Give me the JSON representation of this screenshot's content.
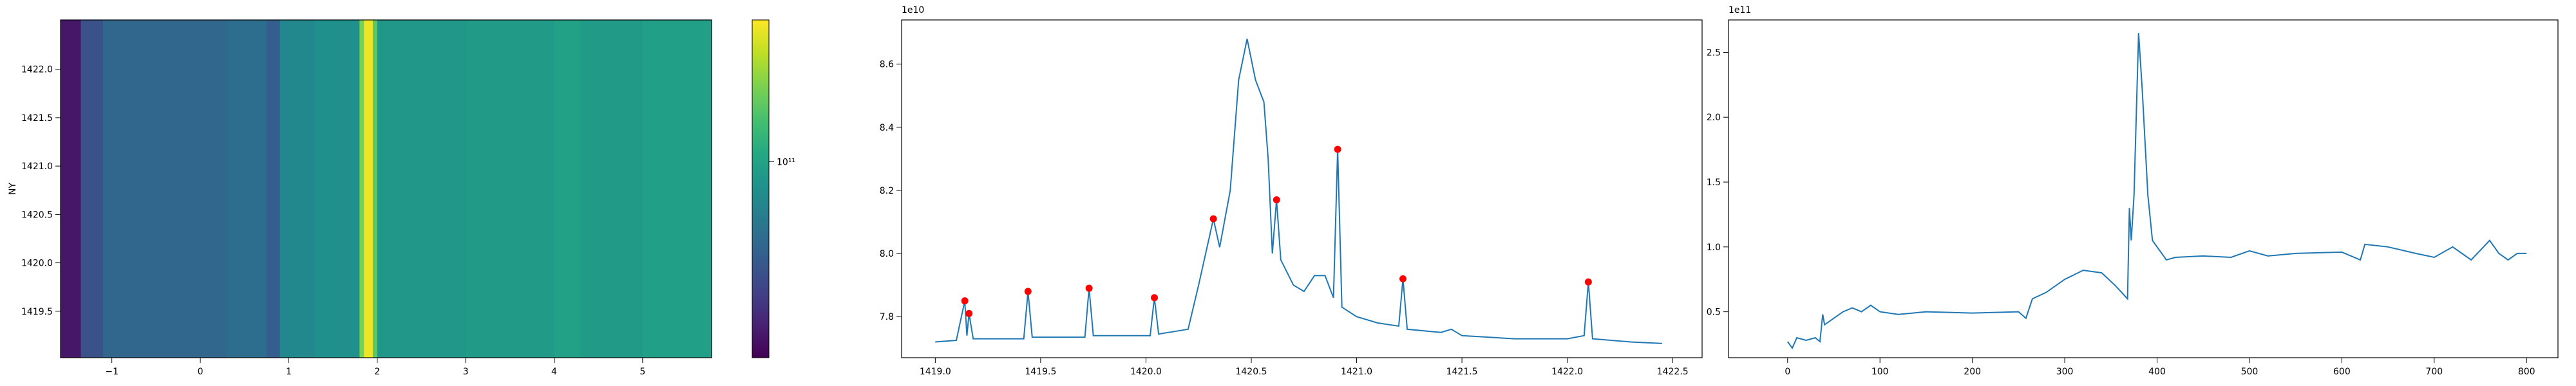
{
  "chart_data": [
    {
      "type": "heatmap",
      "ylabel": "NY",
      "colormap": "viridis",
      "log_color": true,
      "clim": [
        26000000000,
        265000000000
      ],
      "colorbar_ticks": [
        {
          "value": 100000000000,
          "label": "10¹¹"
        }
      ],
      "x_edges": [
        -1.58,
        -1.35,
        -1.1,
        0.3,
        0.75,
        0.9,
        1.3,
        1.8,
        1.85,
        1.95,
        2.0,
        3.0,
        4.0,
        4.3,
        5.0,
        5.78
      ],
      "values": [
        30000000000,
        46500000000,
        56000000000,
        60000000000,
        52000000000,
        77000000000,
        83000000000,
        166000000000,
        250000000000,
        148000000000,
        89000000000,
        93000000000,
        99000000000,
        93000000000,
        97000000000
      ],
      "xlim": [
        -1.58,
        5.78
      ],
      "ylim": [
        1419.02,
        1422.51
      ],
      "xticks": [
        {
          "value": -1,
          "label": "−1"
        },
        0,
        1,
        2,
        3,
        4,
        5
      ],
      "yticks": [
        {
          "value": 1419.5,
          "label": "1419.5"
        },
        {
          "value": 1420,
          "label": "1420.0"
        },
        {
          "value": 1420.5,
          "label": "1420.5"
        },
        {
          "value": 1421,
          "label": "1421.0"
        },
        {
          "value": 1421.5,
          "label": "1421.5"
        },
        {
          "value": 1422,
          "label": "1422.0"
        }
      ]
    },
    {
      "type": "line",
      "offset_text": "1e10",
      "xlim": [
        1418.84,
        1422.64
      ],
      "ylim": [
        7.67,
        8.74
      ],
      "xticks": [
        {
          "value": 1419,
          "label": "1419.0"
        },
        1419.5,
        {
          "value": 1420,
          "label": "1420.0"
        },
        1420.5,
        {
          "value": 1421,
          "label": "1421.0"
        },
        1421.5,
        {
          "value": 1422,
          "label": "1422.0"
        },
        1422.5
      ],
      "yticks": [
        7.8,
        {
          "value": 8,
          "label": "8.0"
        },
        8.2,
        8.4,
        8.6
      ],
      "series": [
        {
          "color": "#1f77b4",
          "line": true,
          "x": [
            1419.0,
            1419.1,
            1419.14,
            1419.15,
            1419.16,
            1419.18,
            1419.42,
            1419.44,
            1419.46,
            1419.71,
            1419.73,
            1419.75,
            1420.02,
            1420.04,
            1420.06,
            1420.2,
            1420.25,
            1420.3,
            1420.32,
            1420.35,
            1420.4,
            1420.44,
            1420.48,
            1420.52,
            1420.56,
            1420.58,
            1420.6,
            1420.62,
            1420.64,
            1420.7,
            1420.75,
            1420.8,
            1420.85,
            1420.89,
            1420.91,
            1420.93,
            1421.0,
            1421.1,
            1421.2,
            1421.22,
            1421.24,
            1421.4,
            1421.45,
            1421.5,
            1421.75,
            1422.0,
            1422.08,
            1422.1,
            1422.12,
            1422.3,
            1422.45
          ],
          "values": [
            7.72,
            7.725,
            7.85,
            7.74,
            7.81,
            7.73,
            7.73,
            7.88,
            7.735,
            7.735,
            7.89,
            7.74,
            7.74,
            7.86,
            7.745,
            7.76,
            7.9,
            8.05,
            8.11,
            8.02,
            8.2,
            8.55,
            8.68,
            8.55,
            8.48,
            8.3,
            8.0,
            8.17,
            7.98,
            7.9,
            7.88,
            7.93,
            7.93,
            7.86,
            8.33,
            7.83,
            7.8,
            7.78,
            7.77,
            7.92,
            7.76,
            7.75,
            7.76,
            7.74,
            7.73,
            7.73,
            7.74,
            7.91,
            7.73,
            7.72,
            7.715
          ]
        },
        {
          "color": "red",
          "line": false,
          "marker": "o",
          "x": [
            1419.14,
            1419.16,
            1419.44,
            1419.73,
            1420.04,
            1420.32,
            1420.62,
            1420.91,
            1421.22,
            1422.1
          ],
          "values": [
            7.85,
            7.81,
            7.88,
            7.89,
            7.86,
            8.11,
            8.17,
            8.33,
            7.92,
            7.91
          ]
        }
      ]
    },
    {
      "type": "line",
      "offset_text": "1e11",
      "xlim": [
        -64,
        834
      ],
      "ylim": [
        0.146,
        2.75
      ],
      "xticks": [
        0,
        100,
        200,
        300,
        400,
        500,
        600,
        700,
        800
      ],
      "yticks": [
        0.5,
        {
          "value": 1,
          "label": "1.0"
        },
        1.5,
        {
          "value": 2,
          "label": "2.0"
        },
        2.5
      ],
      "series": [
        {
          "color": "#1f77b4",
          "line": true,
          "x": [
            0,
            5,
            10,
            20,
            30,
            35,
            38,
            40,
            50,
            60,
            70,
            80,
            90,
            100,
            120,
            150,
            200,
            250,
            258,
            265,
            280,
            300,
            320,
            340,
            355,
            368,
            370,
            372,
            375,
            380,
            384,
            390,
            395,
            400,
            410,
            420,
            450,
            480,
            500,
            520,
            550,
            600,
            620,
            625,
            650,
            680,
            700,
            720,
            740,
            760,
            770,
            780,
            790,
            800
          ],
          "values": [
            0.27,
            0.22,
            0.3,
            0.28,
            0.3,
            0.27,
            0.48,
            0.4,
            0.45,
            0.5,
            0.53,
            0.5,
            0.55,
            0.5,
            0.48,
            0.5,
            0.49,
            0.5,
            0.45,
            0.6,
            0.65,
            0.75,
            0.82,
            0.8,
            0.7,
            0.6,
            1.3,
            1.05,
            1.4,
            2.65,
            2.2,
            1.4,
            1.05,
            1.0,
            0.9,
            0.92,
            0.93,
            0.92,
            0.97,
            0.93,
            0.95,
            0.96,
            0.9,
            1.02,
            1.0,
            0.95,
            0.92,
            1.0,
            0.9,
            1.05,
            0.95,
            0.9,
            0.95,
            0.95
          ]
        }
      ]
    }
  ]
}
